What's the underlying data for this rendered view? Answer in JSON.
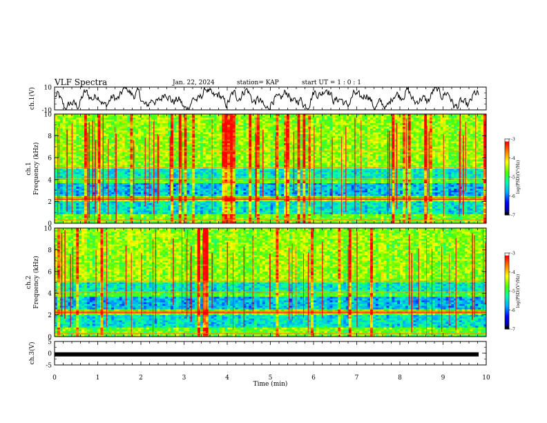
{
  "header": {
    "title": "VLF Spectra",
    "date": "Jan. 22, 2024",
    "station": "station= KAP",
    "start": "start  UT =   1 : 0  : 1"
  },
  "chart_data": [
    {
      "type": "line",
      "ylabel": "ch.1(V)",
      "ylim": [
        -10,
        10
      ],
      "yticks": [
        "10",
        "-10"
      ],
      "xlim": [
        0,
        10
      ],
      "note_values": "noisy waveform oscillating roughly between -10 and 10 V"
    },
    {
      "type": "heatmap",
      "ylabel_line1": "ch.1",
      "ylabel_line2": "Frequency  (kHz)",
      "ylim": [
        0,
        10
      ],
      "yticks": [
        "0",
        "2",
        "4",
        "6",
        "8",
        "10"
      ],
      "xlim": [
        0,
        10
      ],
      "colorbar": {
        "label": "log(PSD)(V²/Hz)",
        "range": [
          -7,
          -3
        ],
        "ticks": [
          "-3",
          "-4",
          "-5",
          "-6",
          "-7"
        ]
      }
    },
    {
      "type": "heatmap",
      "ylabel_line1": "ch.2",
      "ylabel_line2": "Frequency  (kHz)",
      "ylim": [
        0,
        10
      ],
      "yticks": [
        "0",
        "2",
        "4",
        "6",
        "8",
        "10"
      ],
      "xlim": [
        0,
        10
      ],
      "colorbar": {
        "label": "log(PSD)(V²/Hz)",
        "range": [
          -7,
          -3
        ],
        "ticks": [
          "-3",
          "-4",
          "-5",
          "-6",
          "-7"
        ]
      }
    },
    {
      "type": "line",
      "ylabel": "ch.3(V)",
      "ylim": [
        -5,
        5
      ],
      "yticks": [
        "5",
        "0",
        "-5"
      ],
      "xlim": [
        0,
        10
      ],
      "constant_value": -0.5
    }
  ],
  "xaxis": {
    "label": "Time  (min)",
    "ticks": [
      "0",
      "1",
      "2",
      "3",
      "4",
      "5",
      "6",
      "7",
      "8",
      "9",
      "10"
    ]
  },
  "colors": {
    "waveform": "#000000",
    "colormap": [
      "#ffffff",
      "#000080",
      "#0000ff",
      "#00aaff",
      "#00ffaa",
      "#55ff00",
      "#ffff00",
      "#ff8000",
      "#ff0000",
      "#ffffff"
    ]
  }
}
